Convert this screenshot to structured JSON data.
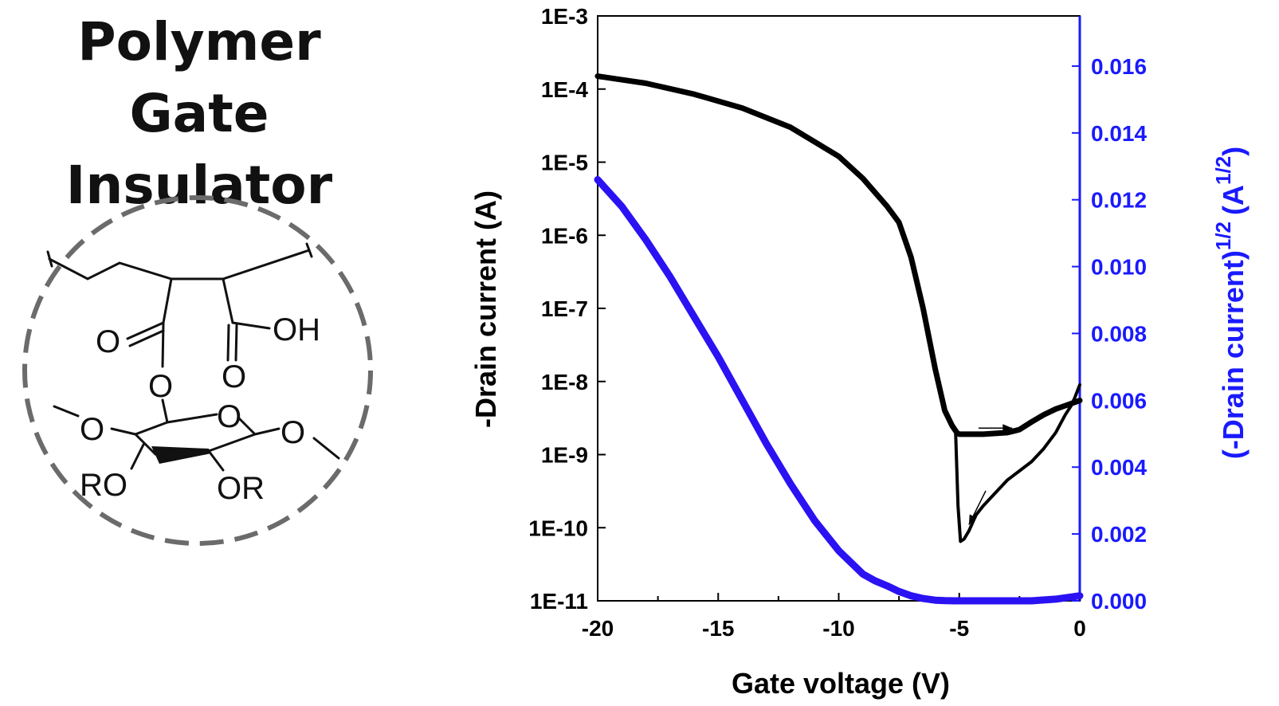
{
  "figure": {
    "title_line1": "Polymer Gate",
    "title_line2": "Insulator"
  },
  "structure": {
    "labels": {
      "carbonyl_o_left": "O",
      "carbonyl_o_right": "O",
      "hydroxyl": "OH",
      "ester_o": "O",
      "ring_o": "O",
      "glyco_o_left": "O",
      "glyco_o_right": "O",
      "ro": "RO",
      "or": "OR"
    },
    "circle_color": "#6b6b6b"
  },
  "chart_data": {
    "type": "line",
    "xlabel": "Gate voltage (V)",
    "ylabel_left": "-Drain current (A)",
    "ylabel_right": "(-Drain current)",
    "ylabel_right_sup1": "1/2",
    "ylabel_right_unit": "(A",
    "ylabel_right_sup2": "1/2",
    "ylabel_right_close": ")",
    "xlim": [
      -20,
      0
    ],
    "x_ticks": [
      -20,
      -15,
      -10,
      -5,
      0
    ],
    "x_tick_labels": [
      "-20",
      "-15",
      "-10",
      "-5",
      "0"
    ],
    "y_left_scale": "log",
    "y_left_lim": [
      1e-11,
      0.001
    ],
    "y_left_ticks": [
      1e-11,
      1e-10,
      1e-09,
      1e-08,
      1e-07,
      1e-06,
      1e-05,
      0.0001,
      0.001
    ],
    "y_left_tick_labels": [
      "1E-11",
      "1E-10",
      "1E-9",
      "1E-8",
      "1E-7",
      "1E-6",
      "1E-5",
      "1E-4",
      "1E-3"
    ],
    "y_right_lim": [
      0,
      0.0175
    ],
    "y_right_ticks": [
      0,
      0.002,
      0.004,
      0.006,
      0.008,
      0.01,
      0.012,
      0.014,
      0.016
    ],
    "y_right_tick_labels": [
      "0.000",
      "0.002",
      "0.004",
      "0.006",
      "0.008",
      "0.010",
      "0.012",
      "0.014",
      "0.016"
    ],
    "colors": {
      "left_axis": "#000000",
      "right_axis": "#1a1aff",
      "sqrt_series": "#2b12f2",
      "log_series": "#000000"
    },
    "series": [
      {
        "axis": "left",
        "x": [
          -20,
          -18,
          -16,
          -14,
          -12,
          -10,
          -9,
          -8,
          -7.5,
          -7,
          -6.5,
          -6,
          -5.6,
          -5.3,
          -5.1,
          -5.0,
          -4.5,
          -4,
          -3,
          -2.5,
          -2,
          -1.5,
          -1,
          -0.5,
          0
        ],
        "y": [
          0.00015,
          0.00012,
          8.5e-05,
          5.5e-05,
          3e-05,
          1.2e-05,
          6e-06,
          2.5e-06,
          1.5e-06,
          5e-07,
          1e-07,
          1.5e-08,
          4e-09,
          2.5e-09,
          2e-09,
          1.9e-09,
          1.9e-09,
          1.9e-09,
          2e-09,
          2.2e-09,
          2.8e-09,
          3.5e-09,
          4.2e-09,
          4.8e-09,
          5.5e-09
        ]
      },
      {
        "axis": "left",
        "x": [
          0,
          -0.3,
          -0.6,
          -1,
          -1.5,
          -2,
          -2.5,
          -3,
          -3.5,
          -4,
          -4.3,
          -4.6,
          -4.8,
          -4.95,
          -5.05,
          -5.15
        ],
        "y": [
          9e-09,
          5e-09,
          3.5e-09,
          2e-09,
          1.2e-09,
          8e-10,
          6e-10,
          4.5e-10,
          3e-10,
          2e-10,
          1.5e-10,
          9e-11,
          7e-11,
          6.5e-11,
          2e-10,
          2e-09
        ]
      },
      {
        "axis": "right",
        "x": [
          -20,
          -19,
          -18,
          -17,
          -16,
          -15,
          -14,
          -13,
          -12,
          -11,
          -10,
          -9,
          -8.5,
          -8,
          -7.5,
          -7,
          -6.5,
          -6,
          -5.6,
          -5.2,
          -5,
          -4,
          -3,
          -2,
          -1,
          0
        ],
        "y": [
          0.0126,
          0.0118,
          0.0108,
          0.0097,
          0.0085,
          0.0073,
          0.006,
          0.0047,
          0.0035,
          0.0024,
          0.0015,
          0.0008,
          0.0006,
          0.00045,
          0.00028,
          0.00015,
          7e-05,
          2e-05,
          5e-06,
          0.0,
          0.0,
          0.0,
          0.0,
          0.0,
          5e-05,
          0.00015
        ]
      }
    ],
    "annotations": [
      {
        "type": "arrow",
        "direction": "right",
        "x": [
          -4.2,
          -2.8
        ],
        "y": 2.3e-09,
        "color": "#000000"
      },
      {
        "type": "arrow",
        "direction": "down-left",
        "x": [
          -4.6,
          -3.9
        ],
        "y": [
          1.1e-10,
          3.2e-10
        ],
        "color": "#000000"
      }
    ]
  }
}
